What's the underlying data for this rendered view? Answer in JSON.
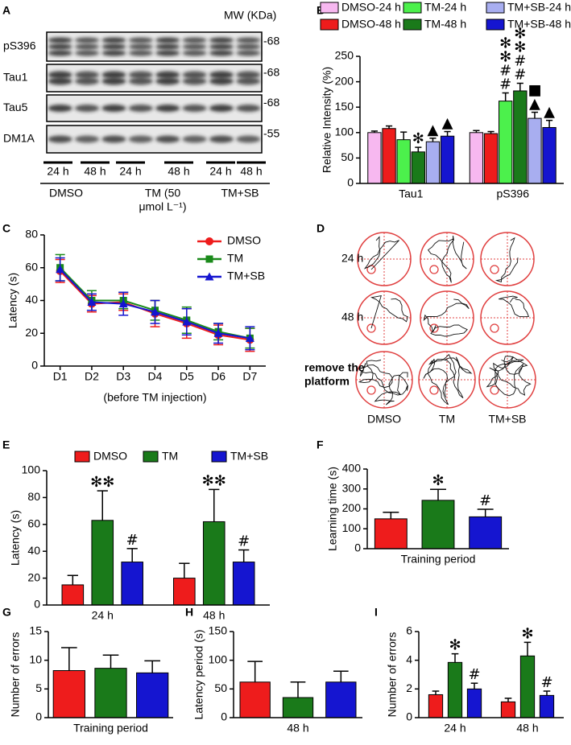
{
  "blot": {
    "panel": "A",
    "mw_header": "MW (KDa)",
    "rows": [
      {
        "label": "pS396",
        "mw": "-68"
      },
      {
        "label": "Tau1",
        "mw": "-68"
      },
      {
        "label": "Tau5",
        "mw": "-68"
      },
      {
        "label": "DM1A",
        "mw": "-55"
      }
    ],
    "times": [
      "24 h",
      "48 h",
      "24 h",
      "48 h",
      "24 h",
      "48 h"
    ],
    "groups": [
      [
        "DMSO"
      ],
      [
        "TM (50",
        "μmol L⁻¹)"
      ],
      [
        "TM+SB"
      ]
    ]
  },
  "maze": {
    "panel": "D",
    "rows": [
      [
        "24 h"
      ],
      [
        "48 h"
      ],
      [
        "remove the",
        "platform"
      ]
    ],
    "columns": [
      "DMSO",
      "TM",
      "TM+SB"
    ]
  },
  "chart_data": [
    {
      "panel": "B",
      "type": "bar",
      "ylabel": "Relative Intensity (%)",
      "categories": [
        "Tau1",
        "pS396"
      ],
      "ylim": [
        0,
        250
      ],
      "yticks": [
        0,
        50,
        100,
        150,
        200,
        250
      ],
      "legend": "top",
      "series": [
        {
          "name": "DMSO-24 h",
          "color": "#f7b8f0",
          "values": [
            100,
            100
          ],
          "errors": [
            3,
            4
          ]
        },
        {
          "name": "DMSO-48 h",
          "color": "#ee1c1c",
          "values": [
            108,
            98
          ],
          "errors": [
            5,
            4
          ]
        },
        {
          "name": "TM-24 h",
          "color": "#4cf04c",
          "values": [
            86,
            162
          ],
          "errors": [
            15,
            16
          ],
          "annotations": [
            null,
            [
              "✻",
              "✻",
              "#",
              "#"
            ]
          ]
        },
        {
          "name": "TM-48 h",
          "color": "#1a7a1a",
          "values": [
            62,
            182
          ],
          "errors": [
            9,
            15
          ],
          "annotations": [
            [
              "✻"
            ],
            [
              "✻",
              "✻",
              "#",
              "#"
            ]
          ]
        },
        {
          "name": "TM+SB-24 h",
          "color": "#a8aef0",
          "values": [
            82,
            128
          ],
          "errors": [
            7,
            12
          ],
          "annotations": [
            [
              "▲"
            ],
            [
              "■",
              "▲"
            ]
          ]
        },
        {
          "name": "TM+SB-48 h",
          "color": "#1515d0",
          "values": [
            93,
            110
          ],
          "errors": [
            9,
            14
          ],
          "annotations": [
            [
              "▲"
            ],
            [
              "▲"
            ]
          ]
        }
      ]
    },
    {
      "panel": "C",
      "type": "line",
      "ylabel": "Latency (s)",
      "xlabel": "(before TM injection)",
      "categories": [
        "D1",
        "D2",
        "D3",
        "D4",
        "D5",
        "D6",
        "D7"
      ],
      "ylim": [
        0,
        80
      ],
      "yticks": [
        0,
        20,
        40,
        60,
        80
      ],
      "legend": "upper right",
      "series": [
        {
          "name": "DMSO",
          "color": "#ee1c1c",
          "marker": "circle",
          "values": [
            58,
            38,
            39,
            32,
            26,
            19,
            16
          ],
          "errors": [
            7,
            5,
            5,
            8,
            9,
            6,
            7
          ]
        },
        {
          "name": "TM",
          "color": "#1a8a1a",
          "marker": "square",
          "values": [
            60,
            40,
            40,
            34,
            28,
            21,
            17
          ],
          "errors": [
            8,
            6,
            5,
            6,
            8,
            5,
            6
          ]
        },
        {
          "name": "TM+SB",
          "color": "#1515d0",
          "marker": "triangle",
          "values": [
            59,
            39,
            38,
            33,
            27,
            20,
            17
          ],
          "errors": [
            7,
            5,
            7,
            7,
            8,
            6,
            7
          ]
        }
      ]
    },
    {
      "panel": "E",
      "type": "bar",
      "ylabel": "Latency (s)",
      "categories": [
        "24 h",
        "48 h"
      ],
      "ylim": [
        0,
        100
      ],
      "yticks": [
        0,
        20,
        40,
        60,
        80,
        100
      ],
      "legend": "top",
      "series": [
        {
          "name": "DMSO",
          "color": "#ee1c1c",
          "values": [
            15,
            20
          ],
          "errors": [
            7,
            11
          ]
        },
        {
          "name": "TM",
          "color": "#1a7a1a",
          "values": [
            63,
            62
          ],
          "errors": [
            22,
            24
          ],
          "annotations": [
            [
              "✻✻"
            ],
            [
              "✻✻"
            ]
          ]
        },
        {
          "name": "TM+SB",
          "color": "#1515d0",
          "values": [
            32,
            32
          ],
          "errors": [
            10,
            9
          ],
          "annotations": [
            [
              "#"
            ],
            [
              "#"
            ]
          ]
        }
      ]
    },
    {
      "panel": "F",
      "type": "bar",
      "ylabel": "Learning time (s)",
      "xlabel": "Training period",
      "ylim": [
        0,
        400
      ],
      "yticks": [
        0,
        100,
        200,
        300,
        400
      ],
      "values": [
        150,
        243,
        160
      ],
      "colors": [
        "#ee1c1c",
        "#1a7a1a",
        "#1515d0"
      ],
      "errors": [
        33,
        55,
        38
      ],
      "annotations": [
        null,
        [
          "✻"
        ],
        [
          "#"
        ]
      ]
    },
    {
      "panel": "G",
      "type": "bar",
      "ylabel": "Number of errors",
      "xlabel": "Training period",
      "ylim": [
        0,
        15
      ],
      "yticks": [
        0,
        5,
        10,
        15
      ],
      "values": [
        8.2,
        8.6,
        7.8
      ],
      "colors": [
        "#ee1c1c",
        "#1a7a1a",
        "#1515d0"
      ],
      "errors": [
        4,
        2.3,
        2.1
      ]
    },
    {
      "panel": "H",
      "type": "bar",
      "ylabel": "Latency period (s)",
      "xlabel": "48 h",
      "ylim": [
        0,
        150
      ],
      "yticks": [
        0,
        50,
        100,
        150
      ],
      "values": [
        62,
        35,
        62
      ],
      "colors": [
        "#ee1c1c",
        "#1a7a1a",
        "#1515d0"
      ],
      "errors": [
        36,
        27,
        19
      ]
    },
    {
      "panel": "I",
      "type": "bar",
      "ylabel": "Number of errors",
      "categories": [
        "24 h",
        "48 h"
      ],
      "ylim": [
        0,
        6
      ],
      "yticks": [
        0,
        2,
        4,
        6
      ],
      "series": [
        {
          "color": "#ee1c1c",
          "values": [
            1.6,
            1.1
          ],
          "errors": [
            0.25,
            0.25
          ]
        },
        {
          "color": "#1a7a1a",
          "values": [
            3.85,
            4.3
          ],
          "errors": [
            0.6,
            0.95
          ],
          "annotations": [
            [
              "✻"
            ],
            [
              "✻"
            ]
          ]
        },
        {
          "color": "#1515d0",
          "values": [
            2.0,
            1.55
          ],
          "errors": [
            0.4,
            0.3
          ],
          "annotations": [
            [
              "#"
            ],
            [
              "#"
            ]
          ]
        }
      ]
    }
  ]
}
